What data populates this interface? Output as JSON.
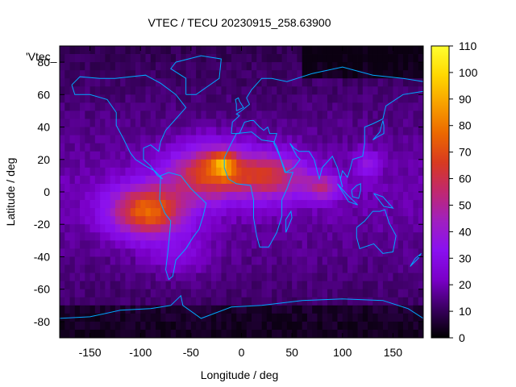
{
  "chart_data": {
    "type": "heatmap",
    "title": "VTEC / TECU 20230915_258.63900",
    "xlabel": "Longitude / deg",
    "ylabel": "Latitude / deg",
    "key_label": "'Vtec_",
    "xlim": [
      -180,
      180
    ],
    "ylim": [
      -90,
      90
    ],
    "x_ticks": [
      -150,
      -100,
      -50,
      0,
      50,
      100,
      150
    ],
    "y_ticks": [
      -80,
      -60,
      -40,
      -20,
      0,
      20,
      40,
      60,
      80
    ],
    "colorbar": {
      "min": 0,
      "max": 110,
      "ticks": [
        0,
        10,
        20,
        30,
        40,
        50,
        60,
        70,
        80,
        90,
        100,
        110
      ]
    },
    "palette": [
      "#000000",
      "#3a0060",
      "#7a00c8",
      "#8a10f0",
      "#a020c0",
      "#c02870",
      "#d83a20",
      "#ec6800",
      "#f8a000",
      "#ffd800",
      "#ffff30"
    ],
    "grid": {
      "lon_step": 5,
      "lat_step": 5
    },
    "lat_rows": [
      87.5,
      82.5,
      77.5,
      72.5,
      67.5,
      62.5,
      57.5,
      52.5,
      47.5,
      42.5,
      37.5,
      32.5,
      27.5,
      22.5,
      17.5,
      12.5,
      7.5,
      2.5,
      -2.5,
      -7.5,
      -12.5,
      -17.5,
      -22.5,
      -27.5,
      -32.5,
      -37.5,
      -42.5,
      -47.5,
      -52.5,
      -57.5,
      -62.5,
      -67.5,
      -72.5,
      -77.5,
      -82.5,
      -87.5
    ],
    "vtec_peaks": [
      {
        "lon": -90,
        "lat": -12,
        "value": 82
      },
      {
        "lon": -20,
        "lat": 16,
        "value": 98
      },
      {
        "lon": 20,
        "lat": 16,
        "value": 70
      },
      {
        "lon": 80,
        "lat": 4,
        "value": 58
      },
      {
        "lon": 120,
        "lat": 18,
        "value": 42
      }
    ],
    "coastlines_color": "#00a8ff"
  }
}
